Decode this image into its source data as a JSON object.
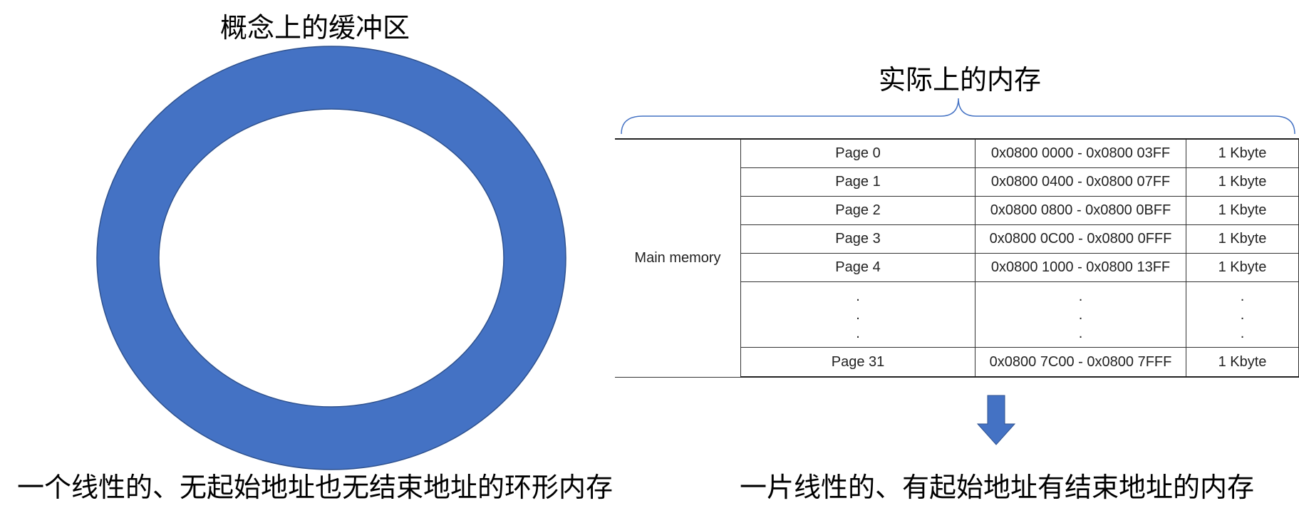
{
  "left": {
    "title": "概念上的缓冲区",
    "caption": "一个线性的、无起始地址也无结束地址的环形内存",
    "ring_color": "#4472C4"
  },
  "right": {
    "title": "实际上的内存",
    "caption": "一片线性的、有起始地址有结束地址的内存",
    "arrow_color": "#4472C4",
    "brace_color": "#4472C4",
    "table": {
      "group_label": "Main memory",
      "rows": [
        {
          "page": "Page 0",
          "range": "0x0800 0000 - 0x0800 03FF",
          "size": "1 Kbyte"
        },
        {
          "page": "Page 1",
          "range": "0x0800 0400 - 0x0800 07FF",
          "size": "1 Kbyte"
        },
        {
          "page": "Page 2",
          "range": "0x0800 0800 - 0x0800 0BFF",
          "size": "1 Kbyte"
        },
        {
          "page": "Page 3",
          "range": "0x0800 0C00 - 0x0800 0FFF",
          "size": "1 Kbyte"
        },
        {
          "page": "Page 4",
          "range": "0x0800 1000 - 0x0800 13FF",
          "size": "1 Kbyte"
        }
      ],
      "ellipsis": ".",
      "last_row": {
        "page": "Page 31",
        "range": "0x0800 7C00 - 0x0800 7FFF",
        "size": "1 Kbyte"
      }
    }
  }
}
